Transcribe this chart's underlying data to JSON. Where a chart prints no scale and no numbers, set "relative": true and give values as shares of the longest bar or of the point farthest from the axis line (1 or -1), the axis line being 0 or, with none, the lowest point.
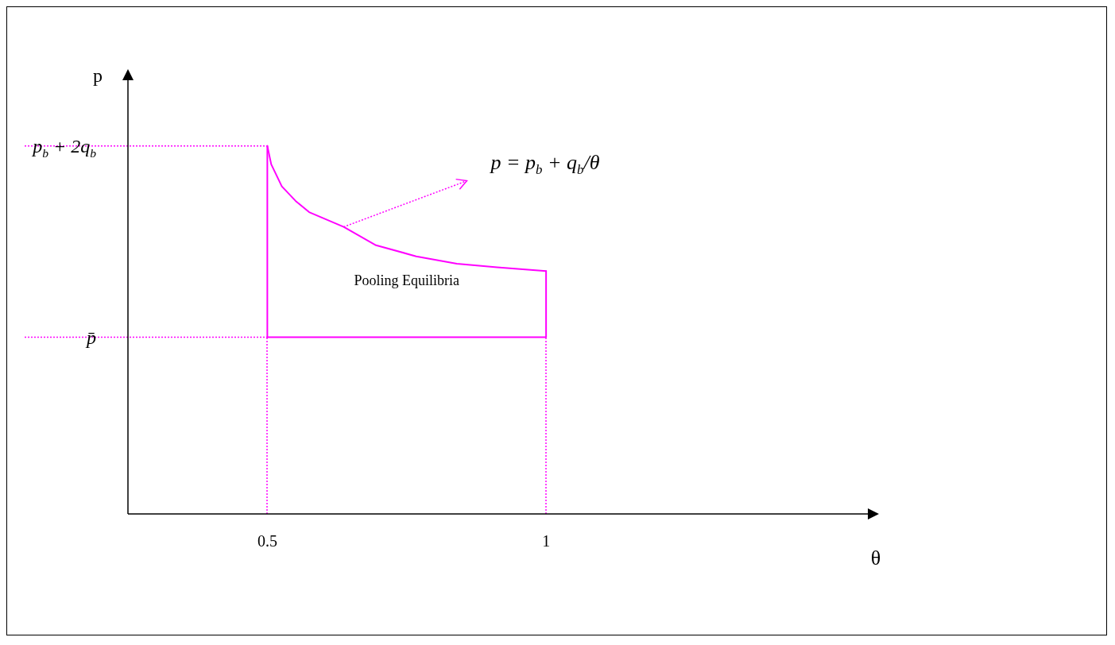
{
  "chart_data": {
    "type": "line",
    "relative": true,
    "xlabel": "θ",
    "ylabel": "p",
    "xlim": [
      0.25,
      1.58
    ],
    "xticks": [
      0.5,
      1
    ],
    "series": [
      {
        "color": "#ff00ff",
        "x": [
          0.5,
          0.507,
          0.526,
          0.551,
          0.575,
          0.637,
          0.695,
          0.767,
          0.84,
          0.912,
          1
        ],
        "values": [
          1,
          0.95,
          0.89,
          0.85,
          0.82,
          0.78,
          0.73,
          0.7,
          0.68,
          0.67,
          0.66
        ]
      },
      {
        "color": "#ff00ff",
        "x": [
          0.5,
          1,
          1
        ],
        "values": [
          0.48,
          0.48,
          0.66
        ]
      },
      {
        "color": "#ff00ff",
        "x": [
          0.5,
          0.5
        ],
        "values": [
          0.48,
          1
        ]
      }
    ],
    "ref_lines": [
      {
        "axis": "y",
        "value": 1,
        "label": "p$_{b}$ + 2q$_{b}$",
        "color": "#ff00ff",
        "line_style": "dotted"
      },
      {
        "axis": "y",
        "value": 0.48,
        "label": "p̄",
        "color": "#ff00ff",
        "line_style": "dotted"
      },
      {
        "axis": "x",
        "value": 0.5,
        "color": "#ff00ff",
        "line_style": "dotted"
      },
      {
        "axis": "x",
        "value": 1,
        "color": "#ff00ff",
        "line_style": "dotted"
      }
    ],
    "annotations": [
      {
        "text": "p = p$_{b}$ + q$_{b}$/θ",
        "x": 0.637,
        "y": 0.78
      },
      "Pooling Equilibria"
    ],
    "grid": false,
    "legend": false,
    "marker": "none",
    "line_style": "solid"
  }
}
